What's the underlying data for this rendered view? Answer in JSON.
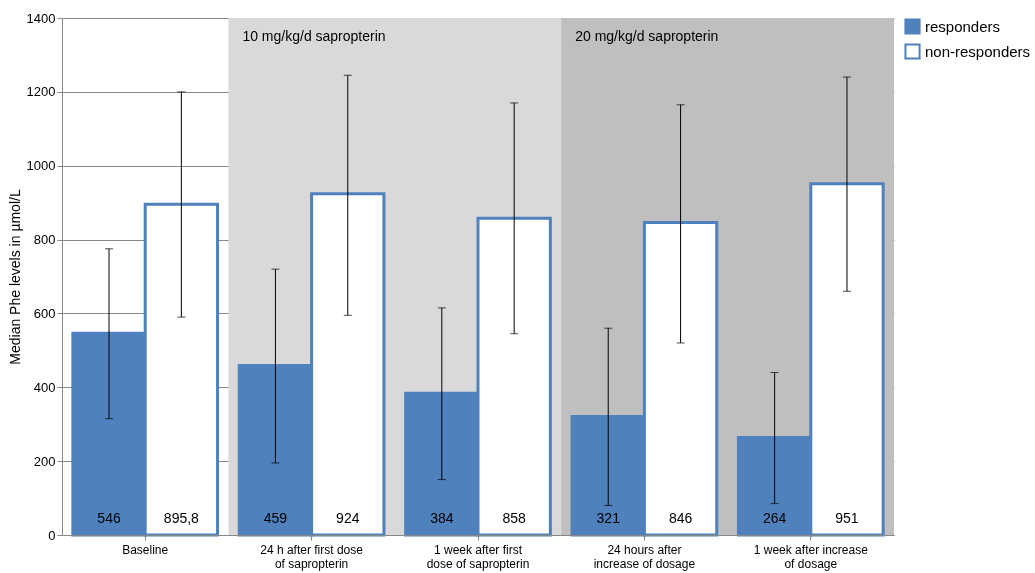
{
  "chart_data": {
    "type": "bar",
    "ylabel": "Median Phe levels in µmol/L",
    "categories": [
      "Baseline",
      "24 h after first dose of sapropterin",
      "1 week after first dose of sapropterin",
      "24 hours after increase of dosage",
      "1 week after increase of dosage"
    ],
    "series": [
      {
        "name": "responders",
        "color": "#4f81bd",
        "values": [
          546,
          459,
          384,
          321,
          264
        ],
        "errors": [
          [
            315,
            775
          ],
          [
            195,
            720
          ],
          [
            150,
            615
          ],
          [
            80,
            560
          ],
          [
            85,
            440
          ]
        ],
        "value_labels": [
          "546",
          "459",
          "384",
          "321",
          "264"
        ]
      },
      {
        "name": "non-responders",
        "color": "#ffffff",
        "values": [
          895.8,
          924,
          858,
          846,
          951
        ],
        "errors": [
          [
            590,
            1200
          ],
          [
            595,
            1245
          ],
          [
            545,
            1170
          ],
          [
            520,
            1165
          ],
          [
            660,
            1240
          ]
        ],
        "value_labels": [
          "895,8",
          "924",
          "858",
          "846",
          "951"
        ]
      }
    ],
    "ylim": [
      0,
      1400
    ],
    "yticks": [
      0,
      200,
      400,
      600,
      800,
      1000,
      1200,
      1400
    ],
    "grid": "y",
    "legend": "right",
    "bands": [
      {
        "axis": "x",
        "from": "24 h after first dose of sapropterin",
        "to": "1 week after first dose of sapropterin",
        "label": "10 mg/kg/d sapropterin",
        "color": "#d9d9d9"
      },
      {
        "axis": "x",
        "from": "24 hours after increase of dosage",
        "to": "1 week after increase of dosage",
        "label": "20 mg/kg/d sapropterin",
        "color": "#bfbfbf"
      }
    ]
  }
}
